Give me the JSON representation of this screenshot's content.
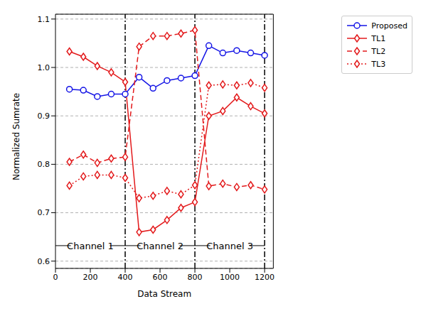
{
  "chart_data": {
    "type": "line",
    "x_label": "Data Stream",
    "y_label": "Normalized Sumrate",
    "x": [
      80,
      160,
      240,
      320,
      400,
      480,
      560,
      640,
      720,
      800,
      880,
      960,
      1040,
      1120,
      1200
    ],
    "series": [
      {
        "name": "Proposed",
        "color": "#1515e6",
        "marker": "circle",
        "line_style": "solid",
        "values": [
          0.955,
          0.953,
          0.94,
          0.945,
          0.945,
          0.98,
          0.957,
          0.973,
          0.978,
          0.983,
          1.045,
          1.03,
          1.035,
          1.03,
          1.025
        ]
      },
      {
        "name": "TL1",
        "color": "#e31a1c",
        "marker": "diamond",
        "line_style": "solid",
        "values": [
          1.033,
          1.022,
          1.003,
          0.99,
          0.97,
          0.66,
          0.665,
          0.685,
          0.71,
          0.722,
          0.9,
          0.91,
          0.938,
          0.92,
          0.905
        ]
      },
      {
        "name": "TL2",
        "color": "#e31a1c",
        "marker": "diamond",
        "line_style": "dashed",
        "values": [
          0.805,
          0.82,
          0.803,
          0.812,
          0.815,
          1.043,
          1.065,
          1.065,
          1.07,
          1.077,
          0.755,
          0.76,
          0.753,
          0.757,
          0.748
        ]
      },
      {
        "name": "TL3",
        "color": "#e31a1c",
        "marker": "diamond",
        "line_style": "dotted",
        "values": [
          0.756,
          0.775,
          0.778,
          0.778,
          0.772,
          0.73,
          0.735,
          0.745,
          0.738,
          0.757,
          0.963,
          0.965,
          0.963,
          0.968,
          0.958
        ]
      }
    ],
    "xlim": [
      0,
      1250
    ],
    "xticks": [
      0,
      200,
      400,
      600,
      800,
      1000,
      1200
    ],
    "ylim": [
      0.585,
      1.11
    ],
    "yticks": [
      0.6,
      0.7,
      0.8,
      0.9,
      {
        "value": 1,
        "label": "1.0"
      },
      1.1
    ],
    "grid": "y",
    "legend": "upper right",
    "boundaries": [
      400,
      800,
      1200
    ],
    "annotations": [
      {
        "text": "Channel 1",
        "from": 0,
        "to": 400,
        "y": 0.632
      },
      {
        "text": "Channel 2",
        "from": 400,
        "to": 800,
        "y": 0.632
      },
      {
        "text": "Channel 3",
        "from": 800,
        "to": 1200,
        "y": 0.632
      }
    ]
  }
}
